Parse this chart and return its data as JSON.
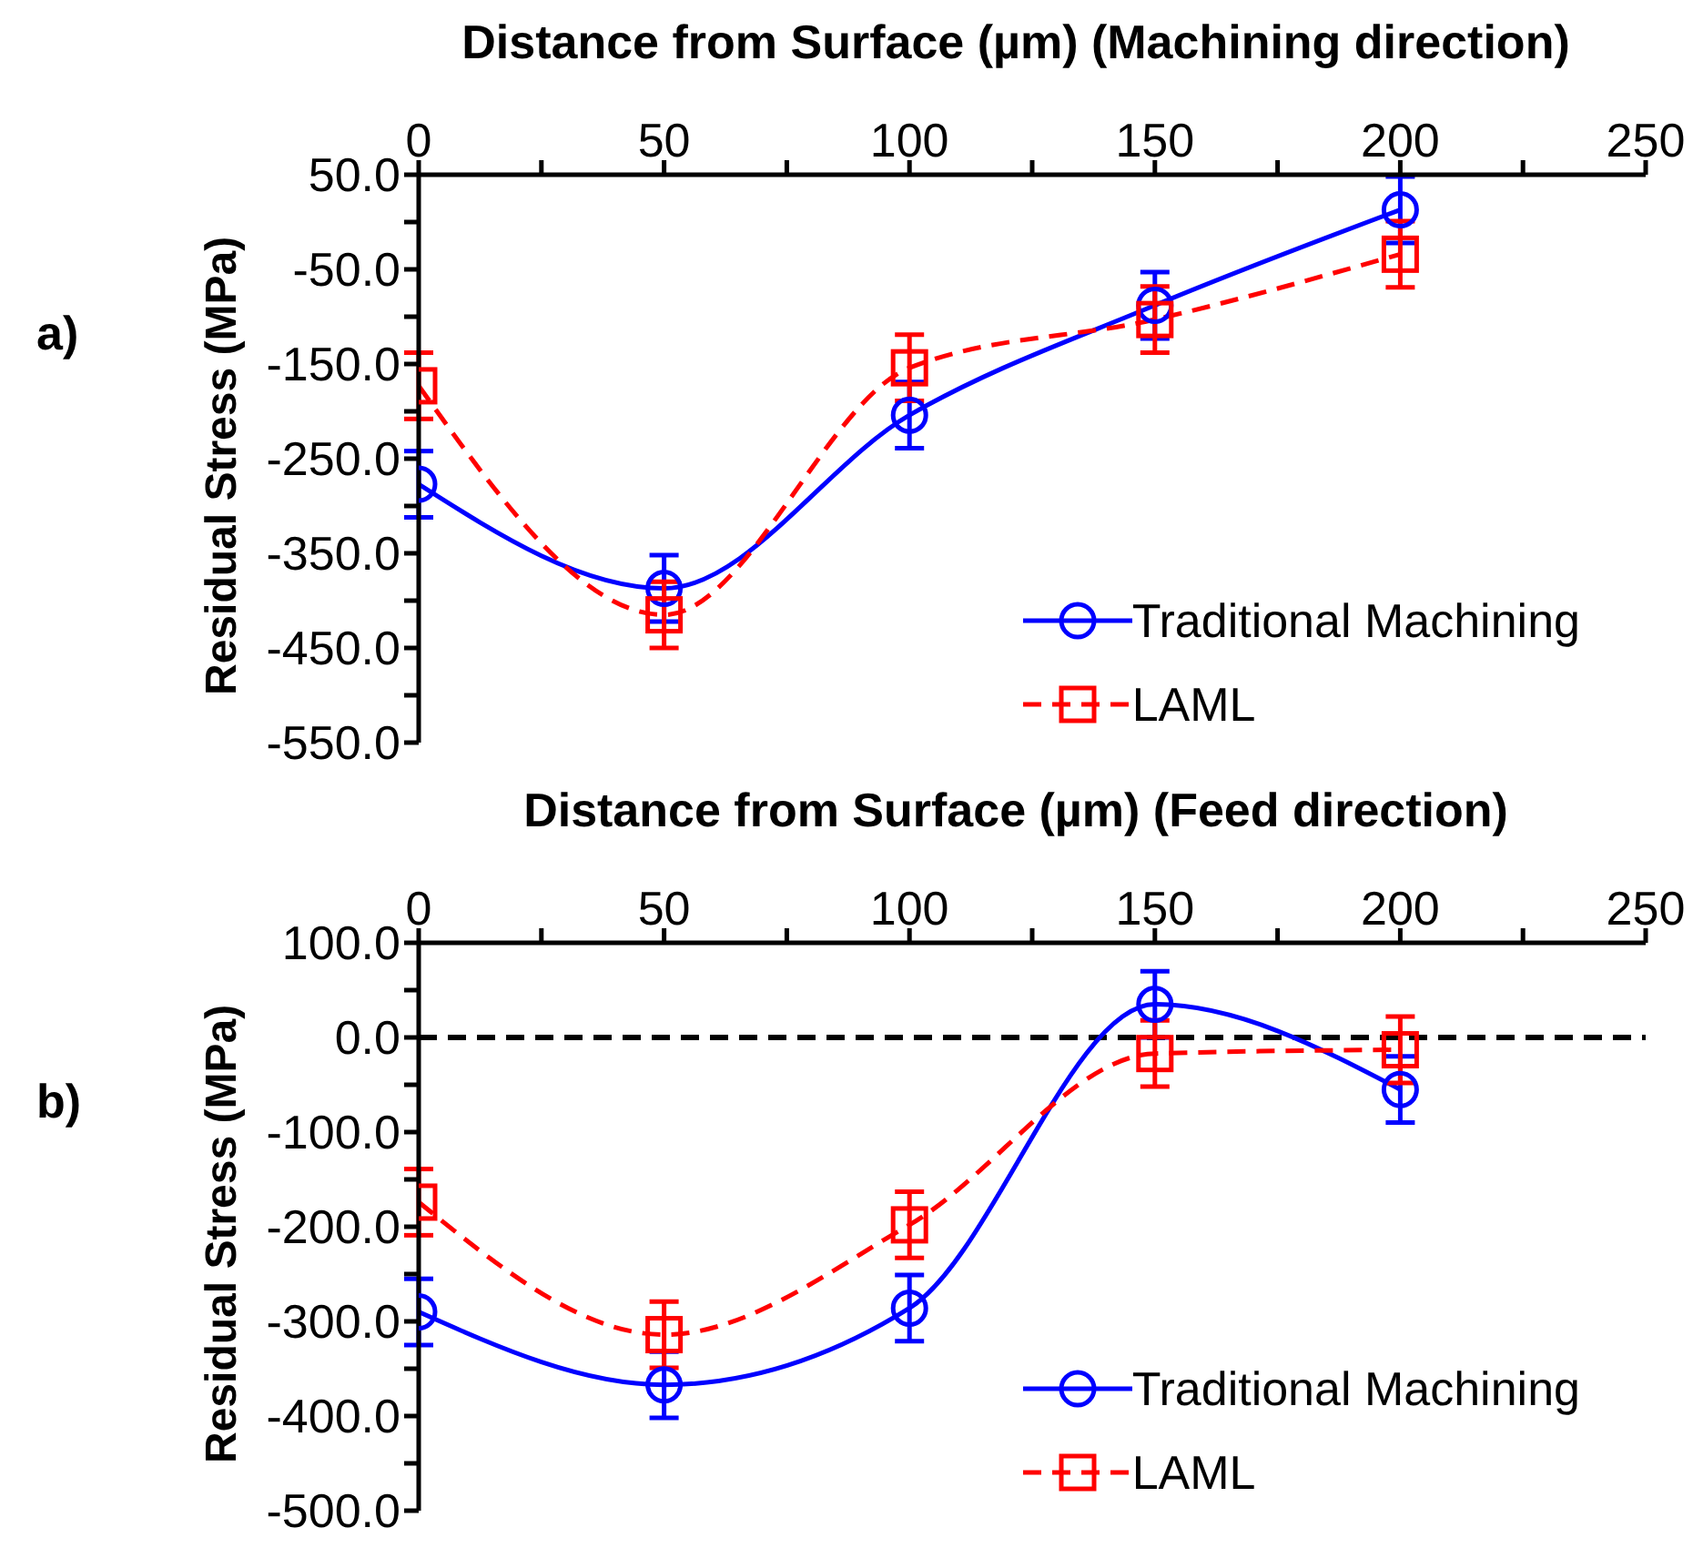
{
  "chart_data": [
    {
      "type": "line",
      "xlabel": "Distance from Surface (µm) (Machining direction)",
      "ylabel": "Residual Stress (MPa)",
      "annotations": [
        "a)"
      ],
      "x": [
        0,
        50,
        100,
        150,
        200
      ],
      "xlim": [
        0,
        250
      ],
      "xticks": [
        0,
        {
          "value": 25,
          "label": null
        },
        50,
        {
          "value": 75,
          "label": null
        },
        100,
        {
          "value": 125,
          "label": null
        },
        150,
        {
          "value": 175,
          "label": null
        },
        200,
        {
          "value": 225,
          "label": null
        },
        250
      ],
      "ylim": [
        -550,
        50
      ],
      "yticks": [
        {
          "value": -550,
          "label": "-550.0"
        },
        {
          "value": -500,
          "label": null
        },
        {
          "value": -450,
          "label": "-450.0"
        },
        {
          "value": -400,
          "label": null
        },
        {
          "value": -350,
          "label": "-350.0"
        },
        {
          "value": -300,
          "label": null
        },
        {
          "value": -250,
          "label": "-250.0"
        },
        {
          "value": -200,
          "label": null
        },
        {
          "value": -150,
          "label": "-150.0"
        },
        {
          "value": -100,
          "label": null
        },
        {
          "value": -50,
          "label": "-50.0"
        },
        {
          "value": 0,
          "label": null
        },
        {
          "value": 50,
          "label": "50.0"
        }
      ],
      "grid": false,
      "legend": "bottom right",
      "series": [
        {
          "name": "Traditional Machining",
          "color": "#0000ff",
          "marker": "circle",
          "line_style": "solid",
          "values": [
            -277,
            -387,
            -204,
            -88,
            13
          ],
          "errors": [
            35,
            35,
            35,
            35,
            35
          ]
        },
        {
          "name": "LAML",
          "color": "#ff0000",
          "marker": "square",
          "line_style": "dashed",
          "values": [
            -173,
            -415,
            -154,
            -103,
            -34
          ],
          "errors": [
            35,
            35,
            35,
            35,
            35
          ]
        }
      ]
    },
    {
      "type": "line",
      "xlabel": "Distance from Surface (µm) (Feed direction)",
      "ylabel": "Residual Stress (MPa)",
      "annotations": [
        "b)"
      ],
      "x": [
        0,
        50,
        100,
        150,
        200
      ],
      "xlim": [
        0,
        250
      ],
      "xticks": [
        0,
        {
          "value": 25,
          "label": null
        },
        50,
        {
          "value": 75,
          "label": null
        },
        100,
        {
          "value": 125,
          "label": null
        },
        150,
        {
          "value": 175,
          "label": null
        },
        200,
        {
          "value": 225,
          "label": null
        },
        250
      ],
      "ylim": [
        -500,
        100
      ],
      "yticks": [
        {
          "value": -500,
          "label": "-500.0"
        },
        {
          "value": -450,
          "label": null
        },
        {
          "value": -400,
          "label": "-400.0"
        },
        {
          "value": -350,
          "label": null
        },
        {
          "value": -300,
          "label": "-300.0"
        },
        {
          "value": -250,
          "label": null
        },
        {
          "value": -200,
          "label": "-200.0"
        },
        {
          "value": -150,
          "label": null
        },
        {
          "value": -100,
          "label": "-100.0"
        },
        {
          "value": -50,
          "label": null
        },
        {
          "value": 0,
          "label": "0.0"
        },
        {
          "value": 50,
          "label": null
        },
        {
          "value": 100,
          "label": "100.0"
        }
      ],
      "grid": false,
      "legend": "bottom right",
      "ref_lines": [
        {
          "axis": "y",
          "value": 0,
          "label": null,
          "color": "#000000",
          "line_style": "dashed"
        }
      ],
      "series": [
        {
          "name": "Traditional Machining",
          "color": "#0000ff",
          "marker": "circle",
          "line_style": "solid",
          "values": [
            -290,
            -367,
            -286,
            35,
            -55
          ],
          "errors": [
            35,
            35,
            35,
            35,
            35
          ]
        },
        {
          "name": "LAML",
          "color": "#ff0000",
          "marker": "square",
          "line_style": "dashed",
          "values": [
            -174,
            -314,
            -198,
            -17,
            -13
          ],
          "errors": [
            35,
            35,
            35,
            35,
            35
          ]
        }
      ]
    }
  ]
}
